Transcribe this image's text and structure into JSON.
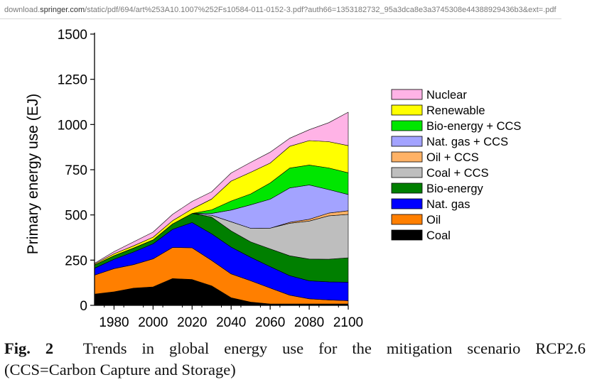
{
  "browser": {
    "url_prefix": "download.",
    "url_domain": "springer.com",
    "url_rest": "/static/pdf/694/art%253A10.1007%252Fs10584-011-0152-3.pdf?auth66=1353182732_95a3dca8e3a3745308e44388929436b3&ext=.pdf"
  },
  "caption": {
    "fig_label": "Fig. 2",
    "line1": "Trends in global energy use for the mitigation scenario RCP2.6",
    "line2": "(CCS=Carbon Capture and Storage)"
  },
  "chart_data": {
    "type": "area",
    "stacked": true,
    "title": "",
    "xlabel": "",
    "ylabel": "Primary energy use (EJ)",
    "xlim": [
      1970,
      2100
    ],
    "ylim": [
      0,
      1500
    ],
    "x_ticks": [
      1980,
      2000,
      2020,
      2040,
      2060,
      2080,
      2100
    ],
    "y_ticks": [
      0,
      250,
      500,
      750,
      1000,
      1250,
      1500
    ],
    "legend_position": "right",
    "x": [
      1970,
      1980,
      1990,
      2000,
      2010,
      2020,
      2030,
      2040,
      2050,
      2060,
      2070,
      2080,
      2090,
      2100
    ],
    "series": [
      {
        "name": "Coal",
        "color": "#000000",
        "values": [
          62,
          75,
          95,
          102,
          148,
          143,
          108,
          42,
          18,
          8,
          8,
          8,
          8,
          8
        ]
      },
      {
        "name": "Oil",
        "color": "#ff7f00",
        "values": [
          105,
          128,
          130,
          155,
          172,
          175,
          140,
          132,
          118,
          88,
          48,
          28,
          22,
          18
        ]
      },
      {
        "name": "Nat. gas",
        "color": "#0000ff",
        "values": [
          38,
          52,
          70,
          83,
          100,
          140,
          148,
          148,
          130,
          118,
          108,
          100,
          100,
          102
        ]
      },
      {
        "name": "Bio-energy",
        "color": "#007f00",
        "values": [
          18,
          20,
          22,
          22,
          30,
          50,
          92,
          90,
          85,
          98,
          110,
          120,
          125,
          135
        ]
      },
      {
        "name": "Coal + CCS",
        "color": "#bebebe",
        "values": [
          0,
          0,
          0,
          0,
          0,
          0,
          10,
          50,
          75,
          115,
          180,
          210,
          240,
          240
        ]
      },
      {
        "name": "Oil + CCS",
        "color": "#ffb266",
        "values": [
          0,
          0,
          0,
          0,
          0,
          0,
          0,
          0,
          0,
          0,
          5,
          10,
          15,
          20
        ]
      },
      {
        "name": "Nat. gas + CCS",
        "color": "#a3a3ff",
        "values": [
          0,
          0,
          0,
          0,
          0,
          0,
          10,
          65,
          130,
          160,
          190,
          190,
          130,
          90
        ]
      },
      {
        "name": "Bio-energy + CCS",
        "color": "#00e600",
        "values": [
          0,
          0,
          0,
          0,
          0,
          0,
          20,
          50,
          60,
          90,
          110,
          110,
          120,
          120
        ]
      },
      {
        "name": "Renewable",
        "color": "#ffff00",
        "values": [
          5,
          10,
          12,
          15,
          18,
          25,
          60,
          110,
          120,
          110,
          120,
          135,
          145,
          150
        ]
      },
      {
        "name": "Nuclear",
        "color": "#ffb3e6",
        "values": [
          5,
          12,
          22,
          28,
          35,
          42,
          40,
          45,
          55,
          60,
          45,
          60,
          105,
          185
        ]
      }
    ]
  }
}
